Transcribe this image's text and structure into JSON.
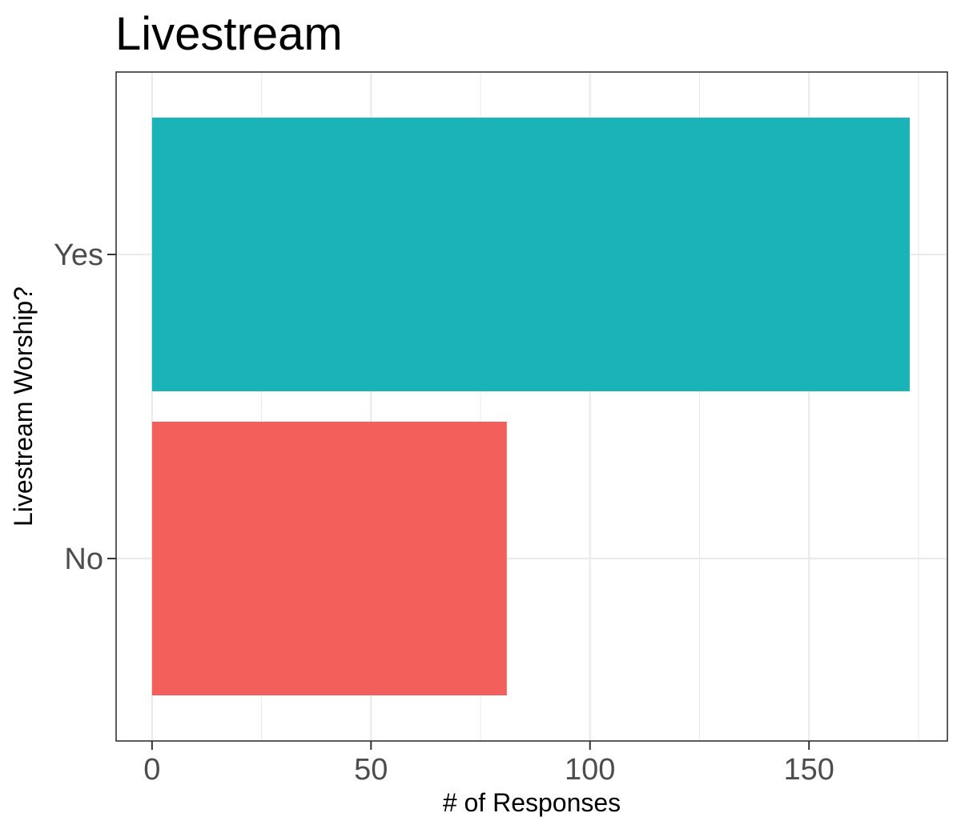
{
  "chart_data": {
    "type": "bar",
    "orientation": "horizontal",
    "title": "Livestream",
    "xlabel": "# of Responses",
    "ylabel": "Livestream Worship?",
    "categories": [
      "No",
      "Yes"
    ],
    "values": [
      81,
      173
    ],
    "colors": [
      "#F35F5B",
      "#1AB4B8"
    ],
    "xlim": [
      -8.2,
      181.6
    ],
    "xticks": [
      0,
      50,
      100,
      150
    ],
    "xtick_labels": [
      "0",
      "50",
      "100",
      "150"
    ],
    "grid": true,
    "legend": "none",
    "theme": "bw"
  }
}
